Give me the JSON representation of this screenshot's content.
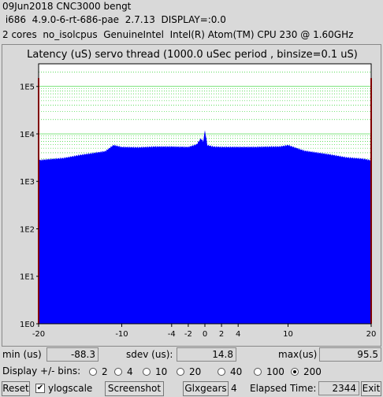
{
  "header": {
    "line1": "09Jun2018 CNC3000 bengt",
    "line2": " i686  4.9.0-6-rt-686-pae  2.7.13  DISPLAY=:0.0",
    "line3": "2 cores  no_isolcpus  GenuineIntel  Intel(R) Atom(TM) CPU 230 @ 1.60GHz"
  },
  "chart_data": {
    "type": "bar",
    "title": "Latency (uS) servo thread (1000.0 uSec period , binsize=0.1 uS)",
    "x_ticks": [
      -20,
      -10,
      -4,
      -2,
      0,
      2,
      4,
      10,
      20
    ],
    "y_ticks": [
      "1E0",
      "1E1",
      "1E2",
      "1E3",
      "1E4",
      "1E5"
    ],
    "xlim": [
      -20,
      20
    ],
    "ylim": [
      1,
      300000
    ],
    "yscale": "log",
    "bar_color": "#0000ff",
    "edge_color": "#ff0000",
    "grid_color": "#00c800",
    "series": [
      {
        "x": [
          -20,
          -19.9,
          -19,
          -17,
          -15,
          -12,
          -11,
          -10,
          -8,
          -6,
          -4,
          -2,
          -1,
          -0.5,
          -0.2,
          0,
          0.3,
          1,
          2,
          4,
          6,
          8,
          9,
          10,
          12,
          15,
          17,
          19,
          19.9,
          20
        ],
        "counts": [
          150000,
          2800,
          2900,
          3100,
          3600,
          4300,
          5800,
          5300,
          5200,
          5400,
          5400,
          5300,
          6000,
          8000,
          7000,
          12000,
          5800,
          5400,
          5300,
          5300,
          5300,
          5400,
          5400,
          5800,
          4400,
          3700,
          3200,
          3000,
          2800,
          150000
        ]
      }
    ]
  },
  "stats": {
    "min_label": "min (us)",
    "min_value": "-88.3",
    "sdev_label": "sdev (us):",
    "sdev_value": "14.8",
    "max_label": "max(us)",
    "max_value": "95.5"
  },
  "bins": {
    "label": "Display +/- bins:",
    "options": [
      "2",
      "4",
      "10",
      "20",
      "40",
      "100",
      "200"
    ],
    "selected": "200"
  },
  "controls": {
    "reset": "Reset",
    "ylogscale": "ylogscale",
    "ylogscale_checked": "✔",
    "screenshot": "Screenshot",
    "glxgears": "Glxgears",
    "glxgears_count": "4",
    "elapsed_label": "Elapsed Time:",
    "elapsed_value": "2344",
    "exit": "Exit"
  }
}
